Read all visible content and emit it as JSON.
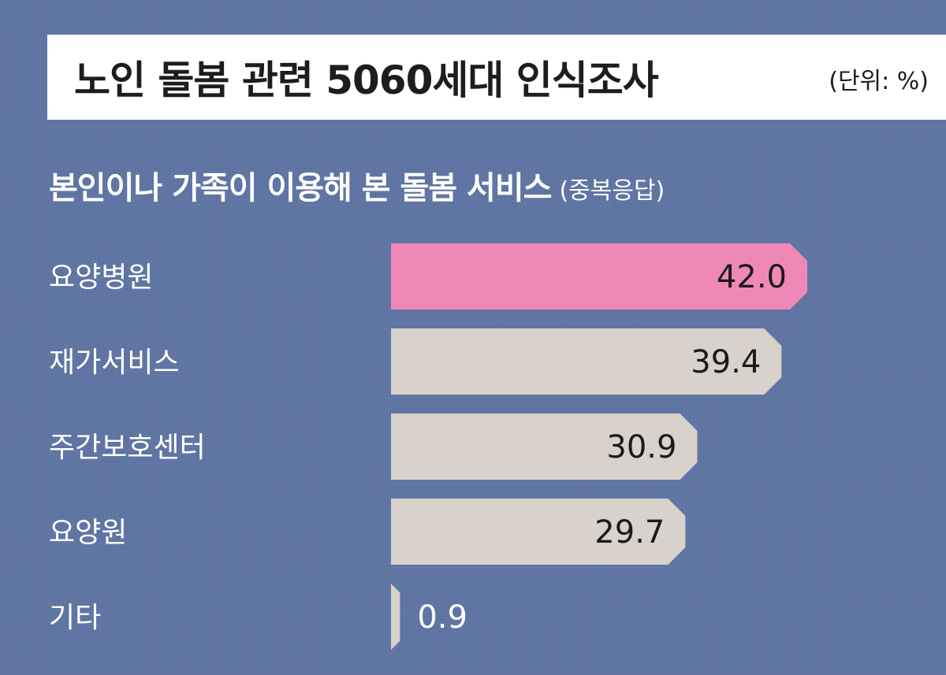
{
  "title": "노인 돌봄 관련 5060세대 인식조사",
  "unit": "(단위: %)",
  "subtitle": "본인이나 가족이 이용해 본 돌봄 서비스",
  "subtitle_note": "(중복응답)",
  "colors": {
    "background": "#5f75a3",
    "highlight_bar": "#f088b7",
    "bar": "#d9d1cb",
    "title_box": "#ffffff"
  },
  "chart_data": {
    "type": "bar",
    "orientation": "horizontal",
    "categories": [
      "요양병원",
      "재가서비스",
      "주간보호센터",
      "요양원",
      "기타"
    ],
    "values": [
      42.0,
      39.4,
      30.9,
      29.7,
      0.9
    ],
    "value_labels": [
      "42.0",
      "39.4",
      "30.9",
      "29.7",
      "0.9"
    ],
    "highlight_index": 0,
    "xlim": [
      0,
      42
    ],
    "grid": false
  }
}
